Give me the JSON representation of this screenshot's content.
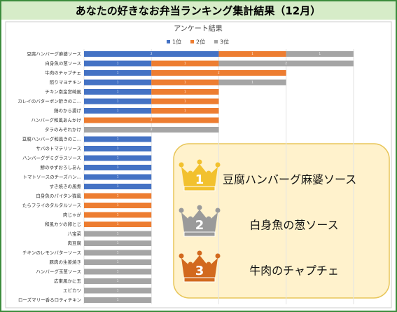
{
  "header_title": "あなたの好きなお弁当ランキング集計結果（12月）",
  "chart_data": {
    "type": "bar",
    "orientation": "horizontal",
    "stacked": true,
    "title": "アンケート結果",
    "categories": [
      "豆腐ハンバーグ麻婆ソース",
      "白身魚の葱ソース",
      "牛肉のチャプチェ",
      "照りマヨチキン",
      "チキン南蛮宮崎風",
      "カレイのバターポン酢きのこ...",
      "鶏のから揚げ",
      "ハンバーグ和風あんかけ",
      "タラのみぞれかけ",
      "豆腐ハンバーグ和風きのこ...",
      "サバのトマテリソース",
      "ハンバーグデミグラスソース",
      "鯵のゆずおろしあん",
      "トマトソースのチーズハン...",
      "すき焼きの風煮",
      "白身魚のパイタン猫風",
      "たらフライのタルタルソース",
      "肉じゃが",
      "和風カツの卵とじ",
      "八宝菜",
      "肉豆腐",
      "チキンのレモンバターソース",
      "豚肉の生姜焼き",
      "ハンバーグ玉葱ソース",
      "広東風かに玉",
      "エビカツ",
      "ローズマリー香るロティチキン"
    ],
    "series": [
      {
        "name": "1位",
        "color": "#4472c4",
        "values": [
          2,
          1,
          1,
          1,
          1,
          1,
          1,
          null,
          null,
          1,
          1,
          1,
          1,
          1,
          1,
          null,
          null,
          null,
          null,
          null,
          null,
          null,
          null,
          null,
          null,
          null,
          null
        ]
      },
      {
        "name": "2位",
        "color": "#ed7d31",
        "values": [
          1,
          1,
          2,
          1,
          1,
          1,
          1,
          2,
          null,
          null,
          null,
          null,
          null,
          null,
          null,
          1,
          1,
          1,
          1,
          null,
          null,
          null,
          null,
          null,
          null,
          null,
          null
        ]
      },
      {
        "name": "3位",
        "color": "#a5a5a5",
        "values": [
          1,
          2,
          null,
          1,
          null,
          null,
          null,
          null,
          2,
          null,
          null,
          null,
          null,
          null,
          null,
          null,
          null,
          null,
          null,
          1,
          1,
          1,
          1,
          1,
          1,
          1,
          1
        ]
      }
    ],
    "xlim": [
      0,
      4.5
    ],
    "grid": true,
    "legend": "top"
  },
  "podium": [
    {
      "rank": 1,
      "name": "豆腐ハンバーグ麻婆ソース",
      "color": "#f2c12e"
    },
    {
      "rank": 2,
      "name": "白身魚の葱ソース",
      "color": "#9a9a9a"
    },
    {
      "rank": 3,
      "name": "牛肉のチャプチェ",
      "color": "#d2691e"
    }
  ]
}
